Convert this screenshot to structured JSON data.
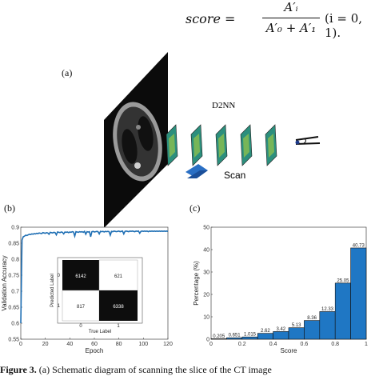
{
  "formula": {
    "lhs": "score =",
    "numerator": "A′ᵢ",
    "denominator": "A′₀ + A′₁",
    "tail": "(i = 0, 1)."
  },
  "panel_a": {
    "label": "(a)",
    "d2nn_label": "D2NN",
    "scan_label": "Scan"
  },
  "panel_b": {
    "label": "(b)",
    "confusion_matrix": {
      "cells": [
        "6142",
        "621",
        "817",
        "6338"
      ],
      "y_label": "Predicted Label",
      "x_label": "True Label",
      "tick_0": "0",
      "tick_1": "1"
    }
  },
  "panel_c": {
    "label": "(c)"
  },
  "caption": {
    "prefix": "Figure 3.",
    "text": "(a) Schematic diagram of scanning the slice of the CT image"
  },
  "chart_data": [
    {
      "type": "line",
      "xlabel": "Epoch",
      "ylabel": "Validation Accuracy",
      "xlim": [
        0,
        120
      ],
      "ylim": [
        0.55,
        0.9
      ],
      "x_ticks": [
        "0",
        "20",
        "40",
        "60",
        "80",
        "100",
        "120"
      ],
      "y_ticks": [
        "0.55",
        "0.6",
        "0.65",
        "0.7",
        "0.75",
        "0.8",
        "0.85",
        "0.9"
      ],
      "series": [
        {
          "color": "#1f6fb4",
          "x": [
            0,
            1,
            2,
            3,
            4,
            5,
            6,
            7,
            8,
            9,
            10,
            11,
            12,
            13,
            14,
            15,
            16,
            17,
            18,
            19,
            20,
            21,
            22,
            23,
            24,
            25,
            26,
            27,
            28,
            29,
            30,
            31,
            32,
            33,
            34,
            35,
            36,
            37,
            38,
            39,
            40,
            41,
            42,
            43,
            44,
            45,
            46,
            47,
            48,
            49,
            50,
            51,
            52,
            53,
            54,
            55,
            56,
            57,
            58,
            59,
            60,
            61,
            62,
            63,
            64,
            65,
            66,
            67,
            68,
            69,
            70,
            71,
            72,
            73,
            74,
            75,
            76,
            77,
            78,
            79,
            80,
            81,
            82,
            83,
            84,
            85,
            86,
            87,
            88,
            89,
            90,
            91,
            92,
            93,
            94,
            95,
            96,
            97,
            98,
            99,
            100,
            101,
            102,
            103,
            104,
            105,
            106,
            107,
            108,
            109,
            110,
            111,
            112,
            113,
            114,
            115,
            116,
            117,
            118,
            119,
            120
          ],
          "y": [
            0.6,
            0.86,
            0.87,
            0.872,
            0.875,
            0.874,
            0.876,
            0.878,
            0.877,
            0.879,
            0.878,
            0.88,
            0.879,
            0.881,
            0.88,
            0.882,
            0.881,
            0.88,
            0.883,
            0.882,
            0.881,
            0.883,
            0.882,
            0.878,
            0.884,
            0.883,
            0.882,
            0.884,
            0.883,
            0.876,
            0.885,
            0.884,
            0.883,
            0.885,
            0.884,
            0.879,
            0.885,
            0.884,
            0.885,
            0.883,
            0.885,
            0.884,
            0.886,
            0.885,
            0.872,
            0.886,
            0.885,
            0.884,
            0.886,
            0.885,
            0.886,
            0.884,
            0.887,
            0.878,
            0.886,
            0.885,
            0.886,
            0.87,
            0.886,
            0.887,
            0.885,
            0.886,
            0.887,
            0.886,
            0.879,
            0.887,
            0.886,
            0.887,
            0.885,
            0.887,
            0.886,
            0.887,
            0.886,
            0.875,
            0.887,
            0.886,
            0.888,
            0.887,
            0.886,
            0.887,
            0.888,
            0.886,
            0.887,
            0.888,
            0.879,
            0.887,
            0.888,
            0.887,
            0.886,
            0.888,
            0.887,
            0.888,
            0.887,
            0.886,
            0.888,
            0.887,
            0.888,
            0.881,
            0.887,
            0.888,
            0.887,
            0.888,
            0.887,
            0.888,
            0.886,
            0.888,
            0.887,
            0.888,
            0.887,
            0.888,
            0.887,
            0.888,
            0.887,
            0.888,
            0.887,
            0.888,
            0.887,
            0.888,
            0.887,
            0.888,
            0.887
          ]
        }
      ]
    },
    {
      "type": "bar",
      "xlabel": "Score",
      "ylabel": "Percentage (%)",
      "xlim": [
        0,
        1
      ],
      "ylim": [
        0,
        50
      ],
      "x_ticks": [
        "0",
        "0.2",
        "0.4",
        "0.6",
        "0.8",
        "1"
      ],
      "y_ticks": [
        "0",
        "10",
        "20",
        "30",
        "40",
        "50"
      ],
      "color": "#1f77c4",
      "bin_width": 0.1,
      "bin_centers": [
        0.05,
        0.15,
        0.25,
        0.35,
        0.45,
        0.55,
        0.65,
        0.75,
        0.85,
        0.95
      ],
      "values": [
        0.205,
        0.651,
        1.015,
        2.62,
        3.42,
        5.13,
        8.36,
        12.33,
        25.05,
        40.73
      ],
      "labels": [
        "0.205",
        "0.651",
        "1.015",
        "2.62",
        "3.42",
        "5.13",
        "8.36",
        "12.33",
        "25.05",
        "40.73"
      ]
    }
  ]
}
